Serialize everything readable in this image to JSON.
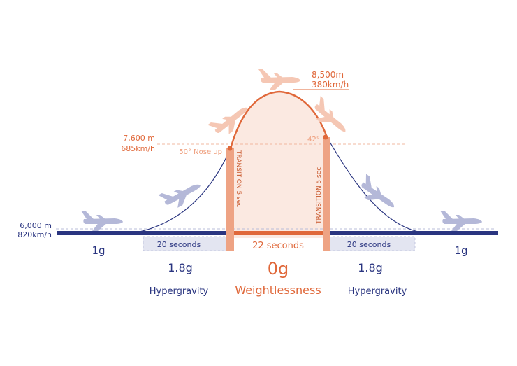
{
  "colors": {
    "navy": "#2a3580",
    "orange": "#e0683a",
    "peach": "#eea384",
    "peach_light": "#fbe9e1",
    "lavender": "#b4b8d8",
    "lavender_fill": "#e3e5f1",
    "plane_pink": "#f5c7b4"
  },
  "altitudes": {
    "cruise_alt": "6,000 m",
    "cruise_speed": "820km/h",
    "pullup_alt": "7,600 m",
    "pullup_speed": "685km/h",
    "apex_alt": "8,500m",
    "apex_speed": "380km/h"
  },
  "angles": {
    "nose_up": "50° Nose up",
    "nose_down": "42°"
  },
  "transitions": {
    "left": "TRANSITION 5 sec",
    "right": "TRANSITION 5 sec"
  },
  "phases": [
    {
      "g": "1g"
    },
    {
      "g": "1.8g",
      "duration": "20 seconds",
      "name": "Hypergravity"
    },
    {
      "g": "0g",
      "duration": "22 seconds",
      "name": "Weightlessness"
    },
    {
      "g": "1.8g",
      "duration": "20 seconds",
      "name": "Hypergravity"
    },
    {
      "g": "1g"
    }
  ],
  "icons": [
    "plane-level-icon",
    "plane-climb-icon",
    "plane-pullup-icon",
    "plane-apex-icon",
    "plane-pushover-icon",
    "plane-descent-icon",
    "plane-level-icon"
  ]
}
